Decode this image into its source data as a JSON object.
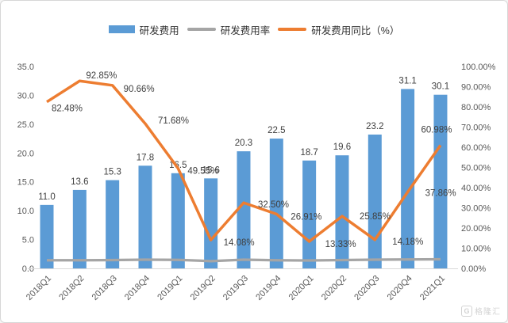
{
  "page": {
    "background": "#ffffff",
    "border_color": "#d7d7d7"
  },
  "legend": {
    "items": [
      {
        "label": "研发费用",
        "type": "bar",
        "color": "#5B9BD5"
      },
      {
        "label": "研发费用率",
        "type": "line",
        "color": "#A5A5A5"
      },
      {
        "label": "研发费用同比（%）",
        "type": "line",
        "color": "#ED7D31"
      }
    ]
  },
  "watermark": {
    "icon": "G",
    "text": "格隆汇"
  },
  "chart_data": {
    "type": "bar",
    "subtype": "combo-bar-line",
    "title": "",
    "categories": [
      "2018Q1",
      "2018Q2",
      "2018Q3",
      "2018Q4",
      "2019Q1",
      "2019Q2",
      "2019Q3",
      "2019Q4",
      "2020Q1",
      "2020Q2",
      "2020Q3",
      "2020Q4",
      "2021Q1"
    ],
    "series": [
      {
        "name": "研发费用",
        "type": "bar",
        "axis": "left",
        "color": "#5B9BD5",
        "values": [
          11.0,
          13.6,
          15.3,
          17.8,
          16.5,
          15.6,
          20.3,
          22.5,
          18.7,
          19.6,
          23.2,
          31.1,
          30.1
        ],
        "labels": [
          "11.0",
          "13.6",
          "15.3",
          "17.8",
          "16.5",
          "15.6",
          "20.3",
          "22.5",
          "18.7",
          "19.6",
          "23.2",
          "31.1",
          "30.1"
        ]
      },
      {
        "name": "研发费用率",
        "type": "line",
        "axis": "right",
        "color": "#A5A5A5",
        "values": [
          4.0,
          4.0,
          4.1,
          4.3,
          4.2,
          3.6,
          4.3,
          4.0,
          3.9,
          4.1,
          4.3,
          4.4,
          4.5
        ],
        "labels": []
      },
      {
        "name": "研发费用同比（%）",
        "type": "line",
        "axis": "right",
        "color": "#ED7D31",
        "values": [
          82.48,
          92.85,
          90.66,
          71.68,
          49.55,
          14.08,
          32.5,
          26.91,
          13.33,
          25.85,
          14.18,
          37.86,
          60.98
        ],
        "labels": [
          "82.48%",
          "92.85%",
          "90.66%",
          "71.68%",
          "49.55%",
          "14.08%",
          "32.50%",
          "26.91%",
          "13.33%",
          "25.85%",
          "14.18%",
          "37.86%",
          "60.98%"
        ]
      }
    ],
    "left_axis": {
      "min": 0,
      "max": 35,
      "step": 5,
      "tick_labels": [
        "0.0",
        "5.0",
        "10.0",
        "15.0",
        "20.0",
        "25.0",
        "30.0",
        "35.0"
      ]
    },
    "right_axis": {
      "min": 0,
      "max": 100,
      "step": 10,
      "tick_labels": [
        "0.00%",
        "10.00%",
        "20.00%",
        "30.00%",
        "40.00%",
        "50.00%",
        "60.00%",
        "70.00%",
        "80.00%",
        "90.00%",
        "100.00%"
      ]
    },
    "grid": false,
    "legend_position": "top"
  }
}
